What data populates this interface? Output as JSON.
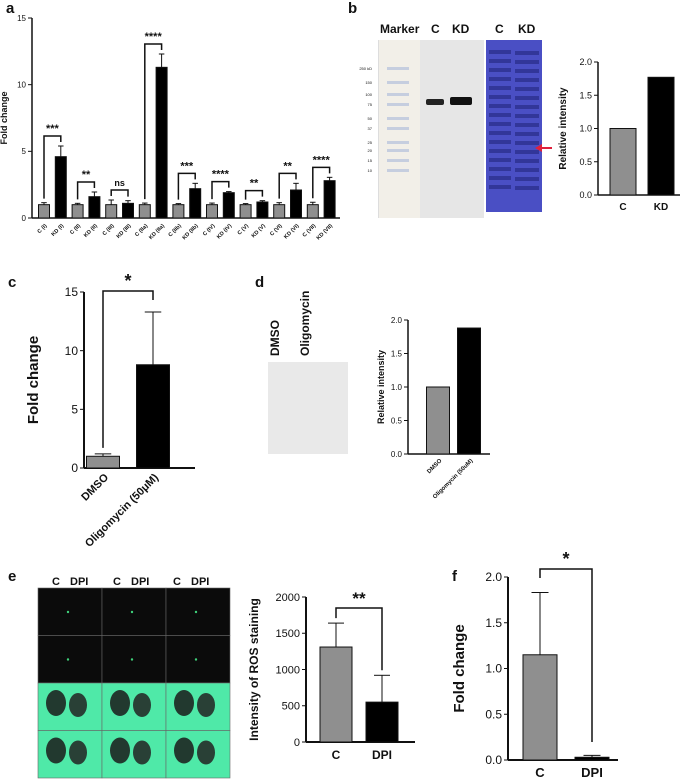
{
  "figure": {
    "panel_letters": [
      "a",
      "b",
      "c",
      "d",
      "e",
      "f"
    ],
    "colors": {
      "control_bar": "#8f8f8f",
      "treated_bar": "#000000",
      "arrow": "#e0203c",
      "coomassie": "#4a4fc4",
      "fluor_bg": "#4fe9a8"
    },
    "blot_b": {
      "marker_label": "Marker",
      "lane_c": "C",
      "lane_kd": "KD",
      "lane_c2": "C",
      "lane_kd2": "KD",
      "marker_kda": [
        "250 kD",
        "150",
        "100",
        "75",
        "50",
        "37",
        "25",
        "20",
        "15",
        "10"
      ]
    },
    "blot_d": {
      "lane_dmso": "DMSO",
      "lane_oligo": "Oligomycin"
    },
    "image_e": {
      "labels": [
        "C",
        "DPI",
        "C",
        "DPI",
        "C",
        "DPI"
      ]
    }
  },
  "chart_data": [
    {
      "panel": "a",
      "type": "bar",
      "ylabel": "Fold change",
      "ylim": [
        0,
        15
      ],
      "yticks": [
        "0",
        "5",
        "10",
        "15"
      ],
      "categories": [
        "C (I)",
        "KD (I)",
        "C (II)",
        "KD (II)",
        "C (III)",
        "KD (III)",
        "C (IIa)",
        "KD (IIa)",
        "C (IIb)",
        "KD (IIb)",
        "C (IV)",
        "KD (IV)",
        "C (V)",
        "KD (V)",
        "C (VI)",
        "KD (VI)",
        "C (VII)",
        "KD (VII)"
      ],
      "values": [
        1.0,
        4.6,
        1.0,
        1.6,
        1.0,
        1.1,
        1.0,
        11.3,
        1.0,
        2.2,
        1.0,
        1.9,
        1.0,
        1.2,
        1.0,
        2.1,
        1.0,
        2.8
      ],
      "errors": [
        0.15,
        0.8,
        0.1,
        0.35,
        0.35,
        0.2,
        0.12,
        1.0,
        0.08,
        0.4,
        0.12,
        0.08,
        0.08,
        0.1,
        0.15,
        0.5,
        0.18,
        0.25
      ],
      "significance": [
        "***",
        "**",
        "ns",
        "****",
        "***",
        "****",
        "**",
        "**",
        "****"
      ]
    },
    {
      "panel": "b",
      "type": "bar",
      "ylabel": "Relative intensity",
      "ylim": [
        0,
        2.0
      ],
      "yticks": [
        "0.0",
        "0.5",
        "1.0",
        "1.5",
        "2.0"
      ],
      "categories": [
        "C",
        "KD"
      ],
      "values": [
        1.0,
        1.77
      ]
    },
    {
      "panel": "c",
      "type": "bar",
      "ylabel": "Fold change",
      "ylim": [
        0,
        15
      ],
      "yticks": [
        "0",
        "5",
        "10",
        "15"
      ],
      "categories": [
        "DMSO",
        "Oligomycin (50μM)"
      ],
      "values": [
        1.0,
        8.8
      ],
      "errors": [
        0.2,
        4.5
      ],
      "significance": "*"
    },
    {
      "panel": "d",
      "type": "bar",
      "ylabel": "Relative intensity",
      "ylim": [
        0,
        2.0
      ],
      "yticks": [
        "0.0",
        "0.5",
        "1.0",
        "1.5",
        "2.0"
      ],
      "categories": [
        "DMSO",
        "Oligomycin (50uM)"
      ],
      "values": [
        1.0,
        1.88
      ]
    },
    {
      "panel": "e",
      "type": "bar",
      "ylabel": "Intensity of ROS staining",
      "ylim": [
        0,
        2000
      ],
      "yticks": [
        "0",
        "500",
        "1000",
        "1500",
        "2000"
      ],
      "categories": [
        "C",
        "DPI"
      ],
      "values": [
        1310,
        550
      ],
      "errors": [
        330,
        370
      ],
      "significance": "**"
    },
    {
      "panel": "f",
      "type": "bar",
      "ylabel": "Fold change",
      "ylim": [
        0,
        2.0
      ],
      "yticks": [
        "0.0",
        "0.5",
        "1.0",
        "1.5",
        "2.0"
      ],
      "categories": [
        "C",
        "DPI"
      ],
      "values": [
        1.15,
        0.03
      ],
      "errors": [
        0.68,
        0.02
      ],
      "significance": "*"
    }
  ]
}
